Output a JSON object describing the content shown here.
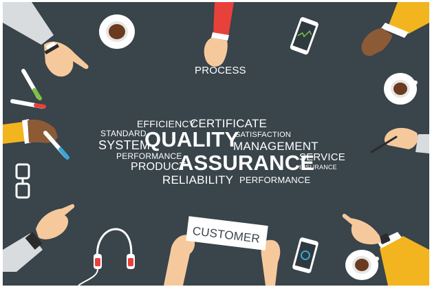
{
  "word_cloud": {
    "quality": "QUALITY",
    "assurance": "ASSURANCE",
    "certificate": "CERTIFICATE",
    "efficiency": "EFFICIENCY",
    "standard": "STANDARD",
    "system": "SYSTEM",
    "satisfaction": "SATISFACTION",
    "management": "MANAGEMENT",
    "performance_left": "PERFORMANCE",
    "product": "PRODUCT",
    "service": "SERVICE",
    "insurance": "INSURANCE",
    "reliability": "RELIABILITY",
    "performance_bottom": "PERFORMANCE"
  },
  "signs": {
    "process": "PROCESS",
    "customer": "CUSTOMER"
  },
  "colors": {
    "background": "#39444b",
    "text": "#ffffff",
    "sleeve_red": "#e8413c",
    "sleeve_yellow": "#f2b51f",
    "skin_light": "#f6c99c",
    "skin_dark": "#8d5a36",
    "coffee": "#6b3b1f",
    "marker_green": "#7dc242",
    "marker_blue": "#3aa7d9",
    "marker_red": "#e8413c"
  },
  "icons": [
    "coffee-cup-icon",
    "smartphone-icon",
    "glasses-icon",
    "headphones-icon",
    "marker-icon",
    "pen-icon",
    "watch-icon"
  ]
}
